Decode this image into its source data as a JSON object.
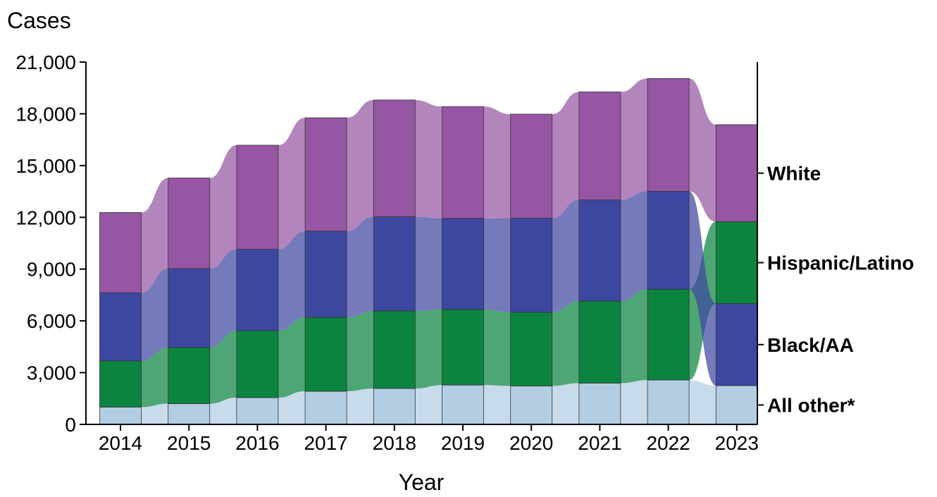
{
  "chart_data": {
    "type": "bar",
    "stacked": true,
    "ylabel": "Cases",
    "xlabel": "Year",
    "ylim": [
      0,
      21000
    ],
    "yticks": [
      0,
      3000,
      6000,
      9000,
      12000,
      15000,
      18000,
      21000
    ],
    "ytick_labels": [
      "0",
      "3,000",
      "6,000",
      "9,000",
      "12,000",
      "15,000",
      "18,000",
      "21,000"
    ],
    "categories": [
      "2014",
      "2015",
      "2016",
      "2017",
      "2018",
      "2019",
      "2020",
      "2021",
      "2022",
      "2023"
    ],
    "series": [
      {
        "name": "All other*",
        "color": "#b3cde3",
        "values": [
          1000,
          1200,
          1550,
          1920,
          2080,
          2280,
          2230,
          2390,
          2570,
          2250
        ]
      },
      {
        "name": "Hispanic/Latino",
        "color": "#0b8440",
        "values": [
          2680,
          3250,
          3880,
          4280,
          4500,
          4380,
          4270,
          4760,
          5260,
          4750
        ]
      },
      {
        "name": "Black/AA",
        "color": "#3e47a0",
        "values": [
          3950,
          4580,
          4720,
          5000,
          5450,
          5280,
          5450,
          5860,
          5680,
          4750
        ]
      },
      {
        "name": "White",
        "color": "#9656a3",
        "values": [
          4650,
          5250,
          6030,
          6570,
          6770,
          6480,
          6030,
          6260,
          6540,
          5620
        ]
      }
    ],
    "stack_order_2023": [
      "All other*",
      "Black/AA",
      "Hispanic/Latino",
      "White"
    ],
    "legend": {
      "placement": "right",
      "entries": [
        "White",
        "Hispanic/Latino",
        "Black/AA",
        "All other*"
      ]
    },
    "grid": false
  }
}
